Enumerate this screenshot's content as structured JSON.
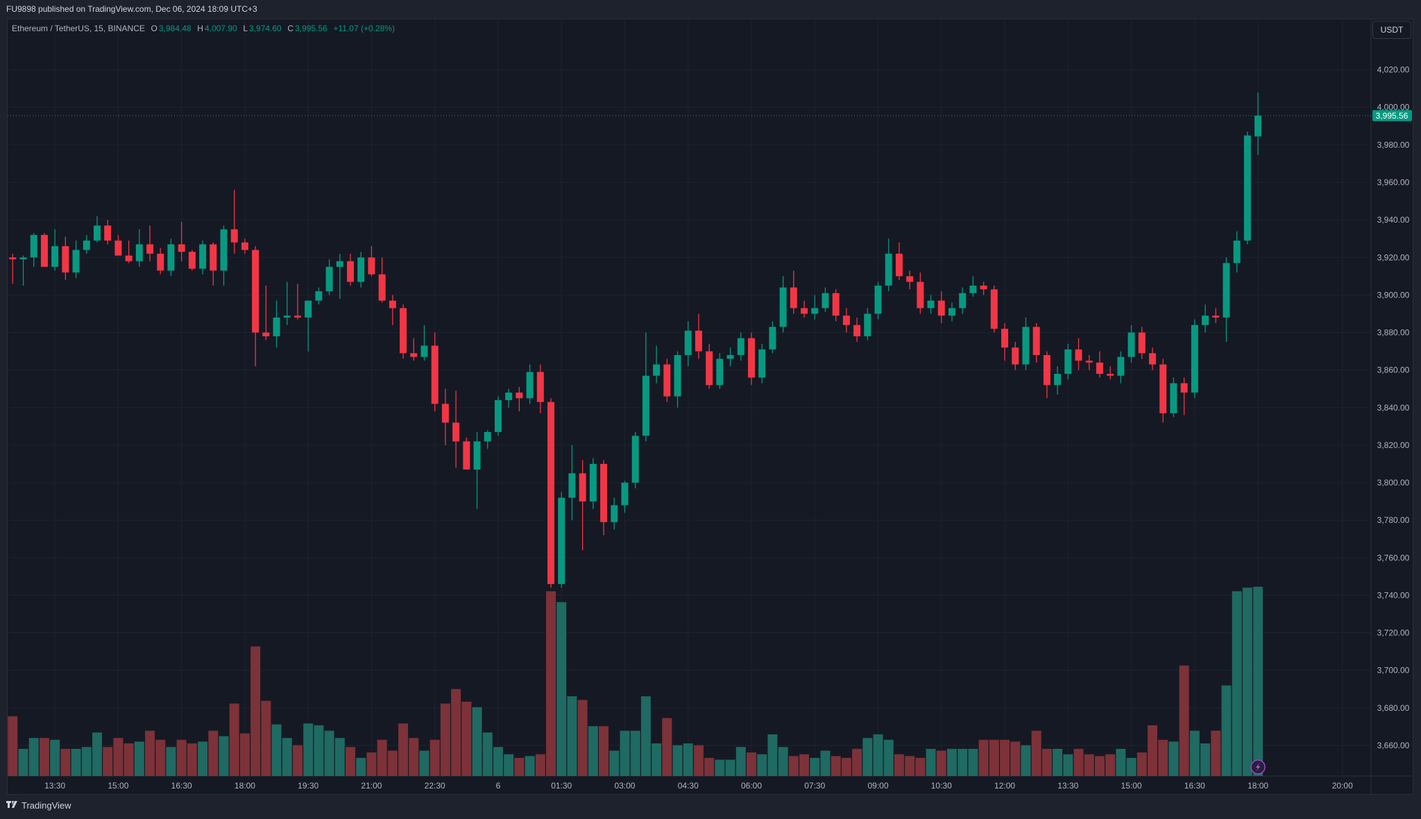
{
  "header": {
    "published": "FU9898 published on TradingView.com, Dec 06, 2024 18:09 UTC+3"
  },
  "legend": {
    "symbol": "Ethereum / TetherUS, 15, BINANCE",
    "o_label": "O",
    "o": "3,984.48",
    "h_label": "H",
    "h": "4,007.90",
    "l_label": "L",
    "l": "3,974.60",
    "c_label": "C",
    "c": "3,995.56",
    "change": "+11.07 (+0.28%)"
  },
  "currency": "USDT",
  "footer": {
    "brand": "TradingView",
    "logo_icon": "tradingview-logo-icon"
  },
  "colors": {
    "up": "#089981",
    "down": "#f23645",
    "vol_up": "#1f6a62",
    "vol_down": "#7c3238",
    "background": "#151924"
  },
  "chart_data": {
    "type": "candlestick",
    "interval": "15",
    "ylim": [
      3645,
      4035
    ],
    "grid": true,
    "y_ticks": [
      "4,020.00",
      "4,000.00",
      "3,980.00",
      "3,960.00",
      "3,940.00",
      "3,920.00",
      "3,900.00",
      "3,880.00",
      "3,860.00",
      "3,840.00",
      "3,820.00",
      "3,800.00",
      "3,780.00",
      "3,760.00",
      "3,740.00",
      "3,720.00",
      "3,700.00",
      "3,680.00",
      "3,660.00"
    ],
    "y_tick_values": [
      4020,
      4000,
      3980,
      3960,
      3940,
      3920,
      3900,
      3880,
      3860,
      3840,
      3820,
      3800,
      3780,
      3760,
      3740,
      3720,
      3700,
      3680,
      3660
    ],
    "x_ticks": [
      {
        "label": "13:30",
        "candle": 4
      },
      {
        "label": "15:00",
        "candle": 10
      },
      {
        "label": "16:30",
        "candle": 16
      },
      {
        "label": "18:00",
        "candle": 22
      },
      {
        "label": "19:30",
        "candle": 28
      },
      {
        "label": "21:00",
        "candle": 34
      },
      {
        "label": "22:30",
        "candle": 40
      },
      {
        "label": "6",
        "candle": 46
      },
      {
        "label": "01:30",
        "candle": 52
      },
      {
        "label": "03:00",
        "candle": 58
      },
      {
        "label": "04:30",
        "candle": 64
      },
      {
        "label": "06:00",
        "candle": 70
      },
      {
        "label": "07:30",
        "candle": 76
      },
      {
        "label": "09:00",
        "candle": 82
      },
      {
        "label": "10:30",
        "candle": 88
      },
      {
        "label": "12:00",
        "candle": 94
      },
      {
        "label": "13:30",
        "candle": 100
      },
      {
        "label": "15:00",
        "candle": 106
      },
      {
        "label": "16:30",
        "candle": 112
      },
      {
        "label": "18:00",
        "candle": 118
      },
      {
        "label": "20:00",
        "candle": 126
      }
    ],
    "last_price": {
      "value": 3995.56,
      "label": "3,995.56"
    },
    "candles_ohlc": [
      [
        3920,
        3922,
        3906,
        3919
      ],
      [
        3919,
        3921,
        3905,
        3920
      ],
      [
        3920,
        3933,
        3915,
        3932
      ],
      [
        3932,
        3933,
        3917,
        3915
      ],
      [
        3915,
        3935,
        3913,
        3926
      ],
      [
        3926,
        3931,
        3908,
        3912
      ],
      [
        3912,
        3929,
        3909,
        3924
      ],
      [
        3924,
        3932,
        3922,
        3929
      ],
      [
        3929,
        3942,
        3928,
        3937
      ],
      [
        3937,
        3940,
        3927,
        3929
      ],
      [
        3929,
        3932,
        3925,
        3921
      ],
      [
        3921,
        3929,
        3917,
        3918
      ],
      [
        3918,
        3935,
        3915,
        3927
      ],
      [
        3927,
        3937,
        3918,
        3922
      ],
      [
        3922,
        3925,
        3911,
        3913
      ],
      [
        3913,
        3930,
        3910,
        3927
      ],
      [
        3927,
        3939,
        3918,
        3923
      ],
      [
        3923,
        3924,
        3913,
        3914
      ],
      [
        3914,
        3929,
        3911,
        3927
      ],
      [
        3927,
        3928,
        3905,
        3913
      ],
      [
        3913,
        3937,
        3905,
        3935
      ],
      [
        3935,
        3956,
        3922,
        3928
      ],
      [
        3928,
        3930,
        3922,
        3924
      ],
      [
        3924,
        3926,
        3862,
        3880
      ],
      [
        3880,
        3905,
        3876,
        3878
      ],
      [
        3878,
        3897,
        3872,
        3888
      ],
      [
        3888,
        3907,
        3884,
        3889
      ],
      [
        3889,
        3906,
        3887,
        3888
      ],
      [
        3888,
        3897,
        3870,
        3897
      ],
      [
        3897,
        3904,
        3895,
        3902
      ],
      [
        3902,
        3919,
        3900,
        3915
      ],
      [
        3915,
        3922,
        3898,
        3918
      ],
      [
        3918,
        3922,
        3905,
        3907
      ],
      [
        3907,
        3923,
        3904,
        3920
      ],
      [
        3920,
        3926,
        3910,
        3911
      ],
      [
        3911,
        3920,
        3896,
        3897
      ],
      [
        3897,
        3900,
        3884,
        3893
      ],
      [
        3893,
        3895,
        3866,
        3869
      ],
      [
        3869,
        3877,
        3865,
        3867
      ],
      [
        3867,
        3884,
        3865,
        3873
      ],
      [
        3873,
        3880,
        3838,
        3842
      ],
      [
        3842,
        3850,
        3820,
        3832
      ],
      [
        3832,
        3849,
        3808,
        3822
      ],
      [
        3822,
        3824,
        3808,
        3807
      ],
      [
        3807,
        3827,
        3786,
        3822
      ],
      [
        3822,
        3828,
        3818,
        3827
      ],
      [
        3827,
        3846,
        3825,
        3844
      ],
      [
        3844,
        3850,
        3840,
        3848
      ],
      [
        3848,
        3851,
        3838,
        3845
      ],
      [
        3845,
        3863,
        3842,
        3859
      ],
      [
        3859,
        3863,
        3837,
        3843
      ],
      [
        3843,
        3845,
        3744,
        3746
      ],
      [
        3746,
        3795,
        3744,
        3792
      ],
      [
        3792,
        3820,
        3780,
        3805
      ],
      [
        3805,
        3812,
        3764,
        3790
      ],
      [
        3790,
        3813,
        3786,
        3810
      ],
      [
        3810,
        3812,
        3772,
        3779
      ],
      [
        3779,
        3792,
        3775,
        3788
      ],
      [
        3788,
        3801,
        3784,
        3800
      ],
      [
        3800,
        3827,
        3797,
        3825
      ],
      [
        3825,
        3880,
        3822,
        3857
      ],
      [
        3857,
        3873,
        3853,
        3863
      ],
      [
        3863,
        3866,
        3843,
        3846
      ],
      [
        3846,
        3870,
        3840,
        3868
      ],
      [
        3868,
        3886,
        3862,
        3881
      ],
      [
        3881,
        3890,
        3866,
        3870
      ],
      [
        3870,
        3874,
        3850,
        3852
      ],
      [
        3852,
        3869,
        3850,
        3866
      ],
      [
        3866,
        3872,
        3862,
        3868
      ],
      [
        3868,
        3880,
        3865,
        3877
      ],
      [
        3877,
        3880,
        3852,
        3856
      ],
      [
        3856,
        3874,
        3853,
        3871
      ],
      [
        3871,
        3886,
        3869,
        3883
      ],
      [
        3883,
        3910,
        3880,
        3904
      ],
      [
        3904,
        3913,
        3890,
        3893
      ],
      [
        3893,
        3897,
        3888,
        3890
      ],
      [
        3890,
        3900,
        3887,
        3893
      ],
      [
        3893,
        3904,
        3891,
        3901
      ],
      [
        3901,
        3903,
        3886,
        3889
      ],
      [
        3889,
        3893,
        3880,
        3884
      ],
      [
        3884,
        3888,
        3875,
        3878
      ],
      [
        3878,
        3893,
        3876,
        3890
      ],
      [
        3890,
        3907,
        3887,
        3905
      ],
      [
        3905,
        3930,
        3902,
        3922
      ],
      [
        3922,
        3928,
        3908,
        3910
      ],
      [
        3910,
        3913,
        3903,
        3907
      ],
      [
        3907,
        3912,
        3890,
        3893
      ],
      [
        3893,
        3900,
        3890,
        3897
      ],
      [
        3897,
        3902,
        3885,
        3889
      ],
      [
        3889,
        3896,
        3886,
        3893
      ],
      [
        3893,
        3904,
        3890,
        3901
      ],
      [
        3901,
        3910,
        3899,
        3905
      ],
      [
        3905,
        3907,
        3900,
        3903
      ],
      [
        3903,
        3905,
        3880,
        3882
      ],
      [
        3882,
        3885,
        3865,
        3872
      ],
      [
        3872,
        3875,
        3860,
        3863
      ],
      [
        3863,
        3888,
        3860,
        3883
      ],
      [
        3883,
        3885,
        3864,
        3868
      ],
      [
        3868,
        3870,
        3845,
        3852
      ],
      [
        3852,
        3862,
        3847,
        3858
      ],
      [
        3858,
        3874,
        3855,
        3871
      ],
      [
        3871,
        3877,
        3860,
        3865
      ],
      [
        3865,
        3868,
        3860,
        3864
      ],
      [
        3864,
        3870,
        3856,
        3858
      ],
      [
        3858,
        3862,
        3855,
        3857
      ],
      [
        3857,
        3870,
        3853,
        3867
      ],
      [
        3867,
        3884,
        3864,
        3880
      ],
      [
        3880,
        3883,
        3866,
        3869
      ],
      [
        3869,
        3872,
        3860,
        3863
      ],
      [
        3863,
        3866,
        3832,
        3837
      ],
      [
        3837,
        3856,
        3835,
        3853
      ],
      [
        3853,
        3856,
        3836,
        3848
      ],
      [
        3848,
        3887,
        3845,
        3884
      ],
      [
        3884,
        3895,
        3880,
        3889
      ],
      [
        3889,
        3893,
        3885,
        3888
      ],
      [
        3888,
        3920,
        3875,
        3917
      ],
      [
        3917,
        3934,
        3912,
        3929
      ],
      [
        3929,
        3987,
        3927,
        3985
      ],
      [
        3984.48,
        4007.9,
        3974.6,
        3995.56
      ]
    ],
    "volume_relative": [
      66,
      30,
      42,
      42,
      40,
      30,
      30,
      32,
      48,
      32,
      42,
      36,
      38,
      50,
      40,
      32,
      40,
      36,
      38,
      50,
      44,
      80,
      47,
      143,
      83,
      57,
      42,
      34,
      58,
      56,
      50,
      42,
      32,
      20,
      26,
      40,
      28,
      58,
      42,
      28,
      40,
      80,
      96,
      82,
      76,
      48,
      32,
      24,
      20,
      22,
      24,
      204,
      192,
      88,
      84,
      55,
      55,
      28,
      50,
      50,
      88,
      36,
      64,
      34,
      36,
      34,
      20,
      18,
      18,
      32,
      26,
      24,
      46,
      32,
      22,
      24,
      20,
      28,
      22,
      20,
      30,
      42,
      46,
      40,
      24,
      22,
      20,
      30,
      28,
      30,
      30,
      30,
      40,
      40,
      40,
      38,
      34,
      50,
      30,
      30,
      24,
      30,
      24,
      22,
      24,
      30,
      20,
      26,
      56,
      40,
      38,
      122,
      50,
      36,
      50,
      100,
      204,
      208,
      209
    ]
  }
}
